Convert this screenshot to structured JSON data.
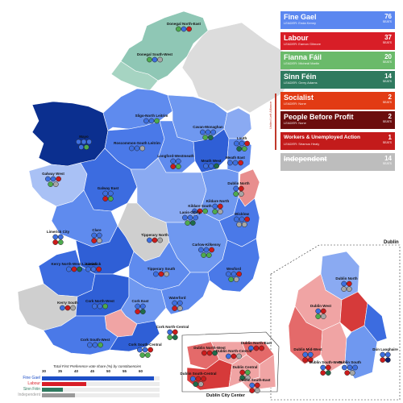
{
  "parties": [
    {
      "name": "Fine Gael",
      "leader": "LEADER: Enda Kenny",
      "seats": "76",
      "seats_label": "SEATS",
      "color": "#5b87f0"
    },
    {
      "name": "Labour",
      "leader": "LEADER: Eamon Gilmore",
      "seats": "37",
      "seats_label": "SEATS",
      "color": "#d81e27"
    },
    {
      "name": "Fianna Fáil",
      "leader": "LEADER: Micheál Martin",
      "seats": "20",
      "seats_label": "SEATS",
      "color": "#6aba6a"
    },
    {
      "name": "Sinn Féin",
      "leader": "LEADER: Gerry Adams",
      "seats": "14",
      "seats_label": "SEATS",
      "color": "#2f7a5f"
    },
    {
      "name": "Socialist",
      "leader": "LEADER: None",
      "seats": "2",
      "seats_label": "SEATS",
      "color": "#e23b14"
    },
    {
      "name": "People Before Profit",
      "leader": "LEADER: None",
      "seats": "2",
      "seats_label": "SEATS",
      "color": "#6b0d0d"
    },
    {
      "name": "Workers & Unemployed Action",
      "leader": "LEADER: Séamus Healy",
      "seats": "1",
      "seats_label": "SEATS",
      "color": "#c31b1b"
    },
    {
      "name": "Independent",
      "leader": "",
      "seats": "14",
      "seats_label": "SEATS",
      "color": "#bdbdbd"
    }
  ],
  "left_alliance_label": "United Left Alliance",
  "constituencies": [
    {
      "name": "Donegal North-East",
      "seats": [
        "g",
        "b",
        "l"
      ]
    },
    {
      "name": "Donegal South-West",
      "seats": [
        "g",
        "b",
        "x"
      ]
    },
    {
      "name": "Sligo-North Leitrim",
      "seats": [
        "b",
        "b",
        "g"
      ]
    },
    {
      "name": "Mayo",
      "seats": [
        "b",
        "b",
        "b",
        "b",
        "g"
      ]
    },
    {
      "name": "Cavan-Monaghan",
      "seats": [
        "b",
        "b",
        "b",
        "g",
        "s"
      ]
    },
    {
      "name": "Louth",
      "seats": [
        "b",
        "b",
        "l",
        "s",
        "g"
      ]
    },
    {
      "name": "Roscommon-South Leitrim",
      "seats": [
        "b",
        "b",
        "x"
      ]
    },
    {
      "name": "Galway West",
      "seats": [
        "b",
        "b",
        "l",
        "g",
        "x"
      ]
    },
    {
      "name": "Galway East",
      "seats": [
        "b",
        "b",
        "l",
        "g"
      ]
    },
    {
      "name": "Longford-Westmeath",
      "seats": [
        "b",
        "b",
        "l",
        "g"
      ]
    },
    {
      "name": "Meath West",
      "seats": [
        "b",
        "b",
        "s"
      ]
    },
    {
      "name": "Meath East",
      "seats": [
        "b",
        "b",
        "l"
      ]
    },
    {
      "name": "Dublin North",
      "seats": [
        "b",
        "l",
        "g",
        "x"
      ]
    },
    {
      "name": "Kildare North",
      "seats": [
        "b",
        "l",
        "g",
        "x"
      ]
    },
    {
      "name": "Kildare South",
      "seats": [
        "b",
        "l",
        "g"
      ]
    },
    {
      "name": "Laois-Offaly",
      "seats": [
        "b",
        "b",
        "b",
        "g",
        "s"
      ]
    },
    {
      "name": "Wicklow",
      "seats": [
        "b",
        "b",
        "l",
        "x",
        "x"
      ]
    },
    {
      "name": "Limerick City",
      "seats": [
        "b",
        "b",
        "l",
        "g"
      ]
    },
    {
      "name": "Clare",
      "seats": [
        "b",
        "b",
        "l",
        "x"
      ]
    },
    {
      "name": "Tipperary North",
      "seats": [
        "b",
        "l",
        "x"
      ]
    },
    {
      "name": "Limerick",
      "seats": [
        "b",
        "b",
        "l"
      ]
    },
    {
      "name": "Carlow-Kilkenny",
      "seats": [
        "b",
        "b",
        "l",
        "g",
        "g"
      ]
    },
    {
      "name": "Tipperary South",
      "seats": [
        "b",
        "l",
        "x"
      ]
    },
    {
      "name": "Kerry North-West Limerick",
      "seats": [
        "b",
        "l",
        "s"
      ]
    },
    {
      "name": "Wexford",
      "seats": [
        "b",
        "b",
        "l",
        "g",
        "x"
      ]
    },
    {
      "name": "Kerry South",
      "seats": [
        "b",
        "l",
        "x"
      ]
    },
    {
      "name": "Cork East",
      "seats": [
        "b",
        "b",
        "l",
        "s"
      ]
    },
    {
      "name": "Waterford",
      "seats": [
        "b",
        "b",
        "l",
        "x"
      ]
    },
    {
      "name": "Cork North-West",
      "seats": [
        "b",
        "b",
        "g"
      ]
    },
    {
      "name": "Cork North-Central",
      "seats": [
        "b",
        "l",
        "g",
        "s"
      ]
    },
    {
      "name": "Cork South-West",
      "seats": [
        "b",
        "b",
        "g"
      ]
    },
    {
      "name": "Cork South-Central",
      "seats": [
        "b",
        "b",
        "l",
        "g",
        "g"
      ]
    }
  ],
  "dublin_inset": {
    "title": "Dublin",
    "constituencies": [
      {
        "name": "Dublin North",
        "seats": [
          "b",
          "l",
          "x",
          "x"
        ]
      },
      {
        "name": "Dublin West",
        "seats": [
          "b",
          "l",
          "g",
          "x"
        ]
      },
      {
        "name": "Dublin Mid-West",
        "seats": [
          "b",
          "b",
          "l",
          "l"
        ]
      },
      {
        "name": "Dublin South-West",
        "seats": [
          "b",
          "l",
          "l",
          "s"
        ]
      },
      {
        "name": "Dublin South",
        "seats": [
          "b",
          "b",
          "b",
          "l",
          "x"
        ]
      },
      {
        "name": "Dún Laoghaire",
        "seats": [
          "b",
          "b",
          "l",
          "u"
        ]
      }
    ]
  },
  "city_inset": {
    "title": "Dublin City Center",
    "constituencies": [
      {
        "name": "Dublin North-West",
        "seats": [
          "l",
          "l",
          "s"
        ]
      },
      {
        "name": "Dublin North-Central",
        "seats": [
          "b",
          "l",
          "x"
        ]
      },
      {
        "name": "Dublin North-East",
        "seats": [
          "b",
          "l",
          "l"
        ]
      },
      {
        "name": "Dublin South-Central",
        "seats": [
          "b",
          "l",
          "l",
          "s",
          "x"
        ]
      },
      {
        "name": "Dublin Central",
        "seats": [
          "l",
          "g",
          "s",
          "x"
        ]
      },
      {
        "name": "Dublin South-East",
        "seats": [
          "b",
          "l",
          "l",
          "x"
        ]
      }
    ]
  },
  "vote_table": {
    "title": "Total First Preference vote share (%) by constituencies",
    "ticks": [
      "30",
      "35",
      "40",
      "45",
      "50",
      "55",
      "60"
    ],
    "rows": [
      {
        "name": "Fine Gael",
        "color": "#1d4fc7",
        "share": 0.95
      },
      {
        "name": "Labour",
        "color": "#d81e27",
        "share": 0.38
      },
      {
        "name": "Sinn Féin",
        "color": "#2f7a5f",
        "share": 0.18
      },
      {
        "name": "Independent",
        "color": "#9a9a9a",
        "share": 0.28
      }
    ]
  },
  "seat_colors": {
    "b": "#3d6fe0",
    "l": "#cc1b1b",
    "g": "#4eaa4e",
    "s": "#1f6b4a",
    "x": "#a6a6a6",
    "u": "#0d1f6b"
  }
}
